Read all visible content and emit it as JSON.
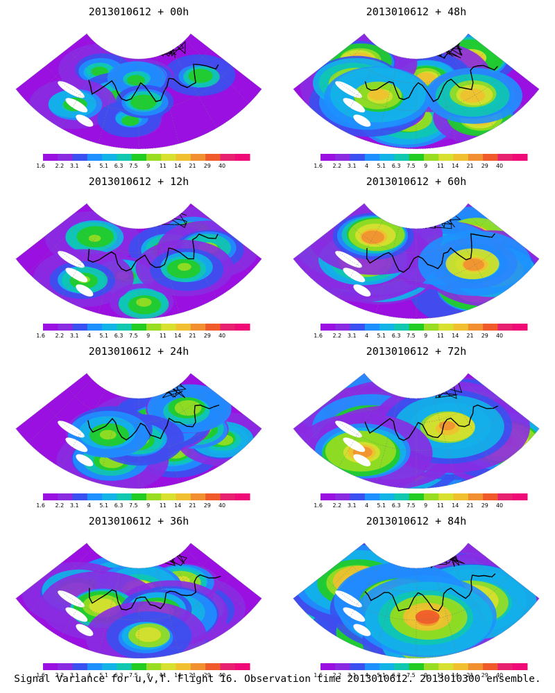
{
  "panels": [
    {
      "title": "2013010612 + 00h",
      "lead": 0
    },
    {
      "title": "2013010612 + 48h",
      "lead": 48
    },
    {
      "title": "2013010612 + 12h",
      "lead": 12
    },
    {
      "title": "2013010612 + 60h",
      "lead": 60
    },
    {
      "title": "2013010612 + 24h",
      "lead": 24
    },
    {
      "title": "2013010612 + 72h",
      "lead": 72
    },
    {
      "title": "2013010612 + 36h",
      "lead": 36
    },
    {
      "title": "2013010612 + 84h",
      "lead": 84
    }
  ],
  "colorbar": {
    "labels": [
      "1.6",
      "2.2",
      "3.1",
      "4",
      "5.1",
      "6.3",
      "7.5",
      "9",
      "11",
      "14",
      "21",
      "29",
      "40"
    ],
    "colors": [
      "#9a10e0",
      "#8a2be2",
      "#3a50f0",
      "#1e90ff",
      "#12b4e8",
      "#10c8b0",
      "#22cc22",
      "#99dd22",
      "#d8e030",
      "#f0c030",
      "#f09030",
      "#f05a2a",
      "#e82070",
      "#f00a78"
    ]
  },
  "footer": "Signal Variance for u,v,T. Flight 16. Observation time 2013010612. 2013010300 ensemble."
}
